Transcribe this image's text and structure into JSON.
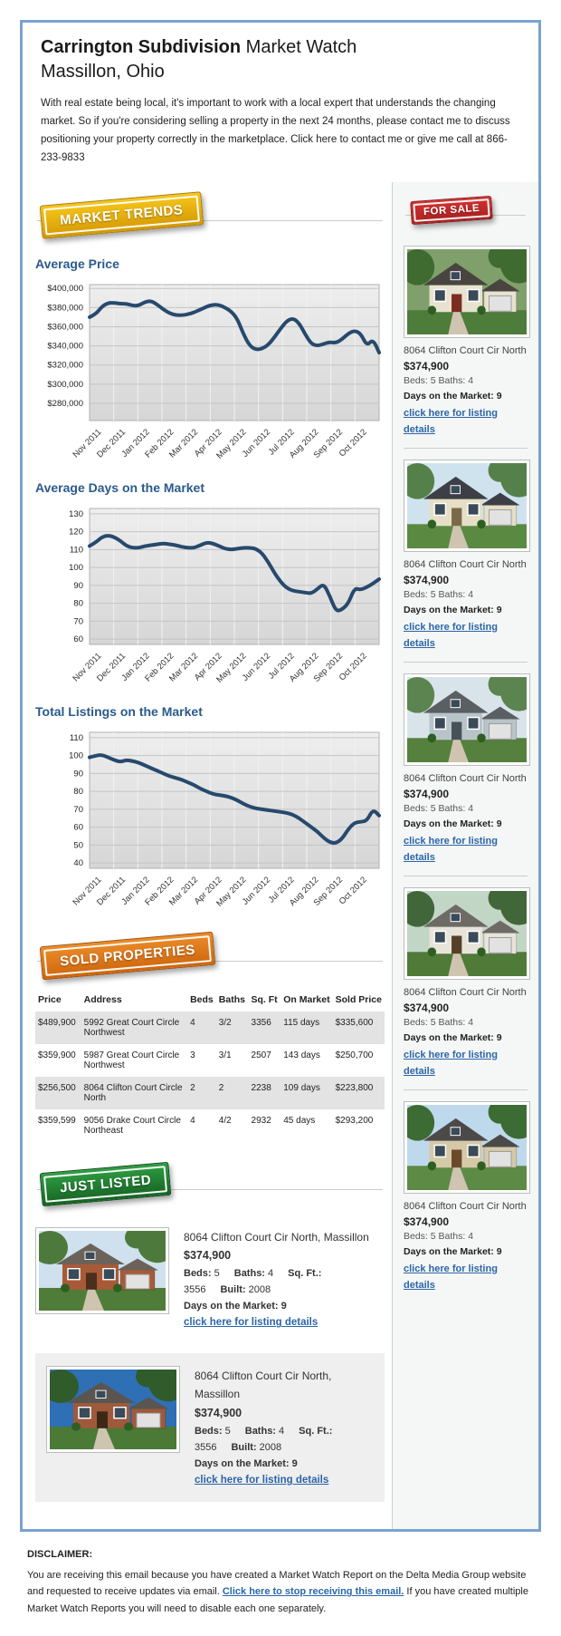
{
  "header": {
    "title_bold": "Carrington Subdivision",
    "title_rest": " Market Watch",
    "subtitle": "Massillon, Ohio",
    "intro": "With real estate being local, it's important to work with a local expert that understands the changing market. So if you're considering selling a property in the next 24 months, please contact me to discuss positioning your property correctly in the marketplace. Click here to contact me or give me call at 866-233-9833"
  },
  "badges": {
    "market_trends": "MARKET TRENDS",
    "sold_properties": "SOLD PROPERTIES",
    "just_listed": "JUST LISTED",
    "for_sale": "FOR SALE"
  },
  "chart_data": [
    {
      "type": "line",
      "title": "Average Price",
      "x_labels": [
        "Nov 2011",
        "Dec 2011",
        "Jan 2012",
        "Feb 2012",
        "Mar 2012",
        "Apr 2012",
        "May 2012",
        "Jun 2012",
        "Jul 2012",
        "Aug 2012",
        "Sep 2012",
        "Oct 2012"
      ],
      "values": [
        370000,
        373000,
        381000,
        385000,
        385000,
        384000,
        384000,
        382000,
        382000,
        386000,
        387000,
        383000,
        378000,
        374000,
        372000,
        372000,
        373000,
        375000,
        378000,
        381000,
        383000,
        383000,
        380000,
        376000,
        368000,
        352000,
        340000,
        336000,
        337000,
        341000,
        349000,
        358000,
        366000,
        369000,
        364000,
        352000,
        342000,
        340000,
        342000,
        344000,
        343000,
        347000,
        353000,
        356000,
        353000,
        340000,
        347000,
        333000
      ],
      "ylim": [
        262000,
        404000
      ],
      "yticks": [
        {
          "v": 280000,
          "label": "$280,000"
        },
        {
          "v": 300000,
          "label": "$300,000"
        },
        {
          "v": 320000,
          "label": "$320,000"
        },
        {
          "v": 340000,
          "label": "$340,000"
        },
        {
          "v": 360000,
          "label": "$360,000"
        },
        {
          "v": 380000,
          "label": "$380,000"
        },
        {
          "v": 400000,
          "label": "$400,000"
        }
      ],
      "line_color": "#27496d",
      "grid": true,
      "legend": "none"
    },
    {
      "type": "line",
      "title": "Average Days on the Market",
      "x_labels": [
        "Nov 2011",
        "Dec 2011",
        "Jan 2012",
        "Feb 2012",
        "Mar 2012",
        "Apr 2012",
        "May 2012",
        "Jun 2012",
        "Jul 2012",
        "Aug 2012",
        "Sep 2012",
        "Oct 2012"
      ],
      "values": [
        112,
        114,
        117,
        118,
        117,
        115,
        112,
        111,
        111,
        112,
        112.5,
        113,
        113.5,
        113,
        112.5,
        111.5,
        111,
        111,
        112.5,
        114,
        113.5,
        112,
        110.5,
        110,
        110.5,
        111,
        111,
        110.5,
        108,
        103,
        97,
        92,
        88.5,
        87,
        86.5,
        86,
        85.5,
        88,
        91,
        84,
        75.5,
        76.5,
        80,
        88.5,
        87.5,
        89,
        91,
        93.5
      ],
      "ylim": [
        57,
        133
      ],
      "yticks": [
        {
          "v": 60,
          "label": "60"
        },
        {
          "v": 70,
          "label": "70"
        },
        {
          "v": 80,
          "label": "80"
        },
        {
          "v": 90,
          "label": "90"
        },
        {
          "v": 100,
          "label": "100"
        },
        {
          "v": 110,
          "label": "110"
        },
        {
          "v": 120,
          "label": "120"
        },
        {
          "v": 130,
          "label": "130"
        }
      ],
      "line_color": "#27496d",
      "grid": true,
      "legend": "none"
    },
    {
      "type": "line",
      "title": "Total Listings on the Market",
      "x_labels": [
        "Nov 2011",
        "Dec 2011",
        "Jan 2012",
        "Feb 2012",
        "Mar 2012",
        "Apr 2012",
        "May 2012",
        "Jun 2012",
        "Jul 2012",
        "Aug 2012",
        "Sep 2012",
        "Oct 2012"
      ],
      "values": [
        99,
        100,
        100.5,
        99,
        97.5,
        96.5,
        97.5,
        97,
        96,
        94.5,
        93,
        91.5,
        90,
        88.5,
        87.5,
        86.5,
        85,
        83.5,
        81.5,
        80,
        78.5,
        78,
        77.5,
        76.5,
        75,
        73,
        71.5,
        70.5,
        70,
        69.5,
        69,
        68.5,
        68,
        67,
        65,
        62.5,
        60,
        57.5,
        54,
        51.5,
        51,
        53.5,
        59,
        62.5,
        63,
        63.5,
        70,
        66.5
      ],
      "ylim": [
        37,
        113
      ],
      "yticks": [
        {
          "v": 40,
          "label": "40"
        },
        {
          "v": 50,
          "label": "50"
        },
        {
          "v": 60,
          "label": "60"
        },
        {
          "v": 70,
          "label": "70"
        },
        {
          "v": 80,
          "label": "80"
        },
        {
          "v": 90,
          "label": "90"
        },
        {
          "v": 100,
          "label": "100"
        },
        {
          "v": 110,
          "label": "110"
        }
      ],
      "line_color": "#27496d",
      "grid": true,
      "legend": "none"
    }
  ],
  "sold_table": {
    "headers": [
      "Price",
      "Address",
      "Beds",
      "Baths",
      "Sq. Ft",
      "On Market",
      "Sold Price"
    ],
    "rows": [
      [
        "$489,900",
        "5992 Great Court Circle Northwest",
        "4",
        "3/2",
        "3356",
        "115 days",
        "$335,600"
      ],
      [
        "$359,900",
        "5987 Great Court Circle Northwest",
        "3",
        "3/1",
        "2507",
        "143 days",
        "$250,700"
      ],
      [
        "$256,500",
        "8064 Clifton Court Circle North",
        "2",
        "2",
        "2238",
        "109 days",
        "$223,800"
      ],
      [
        "$359,599",
        "9056 Drake Court Circle Northeast",
        "4",
        "4/2",
        "2932",
        "45 days",
        "$293,200"
      ]
    ]
  },
  "just_listed": {
    "items": [
      {
        "address": "8064 Clifton Court Cir North, Massillon",
        "price": "$374,900",
        "specs": [
          {
            "label": "Beds:",
            "value": "5"
          },
          {
            "label": "Baths:",
            "value": "4"
          },
          {
            "label": "Sq. Ft.:",
            "value": "3556"
          },
          {
            "label": "Built:",
            "value": "2008"
          }
        ],
        "days": "Days on the Market: 9",
        "link": "click here for listing details",
        "photo": {
          "sky": "#cfe0ee",
          "tree": "#4d7a3c",
          "grass": "#4f7c38",
          "wall": "#a85a38",
          "roof": "#6b625a",
          "door": "#4a2f1d"
        }
      },
      {
        "address": "8064 Clifton Court Cir North, Massillon",
        "price": "$374,900",
        "specs": [
          {
            "label": "Beds:",
            "value": "5"
          },
          {
            "label": "Baths:",
            "value": "4"
          },
          {
            "label": "Sq. Ft.:",
            "value": "3556"
          },
          {
            "label": "Built:",
            "value": "2008"
          }
        ],
        "days": "Days on the Market: 9",
        "link": "click here for listing details",
        "photo": {
          "sky": "#2f6fb5",
          "tree": "#2f5c2a",
          "grass": "#4a7a36",
          "wall": "#9e5a3c",
          "roof": "#5a5550",
          "door": "#3c2817"
        }
      }
    ]
  },
  "sidebar": {
    "listings": [
      {
        "address": "8064 Clifton Court Cir North",
        "price": "$374,900",
        "beds_baths": "Beds: 5 Baths: 4",
        "days": "Days on the Market: 9",
        "link": "click here for listing details",
        "photo": {
          "sky": "#7fa06b",
          "tree": "#3f6a30",
          "grass": "#4e7c3a",
          "wall": "#e8e2d0",
          "roof": "#4a4440",
          "door": "#7a2d20"
        }
      },
      {
        "address": "8064 Clifton Court Cir North",
        "price": "$374,900",
        "beds_baths": "Beds: 5 Baths: 4",
        "days": "Days on the Market: 9",
        "link": "click here for listing details",
        "photo": {
          "sky": "#cfe3ee",
          "tree": "#55804a",
          "grass": "#5a8a42",
          "wall": "#e6dfc6",
          "roof": "#3d3f46",
          "door": "#7a6a4a"
        }
      },
      {
        "address": "8064 Clifton Court Cir North",
        "price": "$374,900",
        "beds_baths": "Beds: 5 Baths: 4",
        "days": "Days on the Market: 9",
        "link": "click here for listing details",
        "photo": {
          "sky": "#d8e4ea",
          "tree": "#5c8450",
          "grass": "#55803d",
          "wall": "#b9c4c9",
          "roof": "#5a5f63",
          "door": "#47515a"
        }
      },
      {
        "address": "8064 Clifton Court Cir North",
        "price": "$374,900",
        "beds_baths": "Beds: 5 Baths: 4",
        "days": "Days on the Market: 9",
        "link": "click here for listing details",
        "photo": {
          "sky": "#c2d6c6",
          "tree": "#41663a",
          "grass": "#4f7a38",
          "wall": "#e8e4da",
          "roof": "#6e6a66",
          "door": "#55402a"
        }
      },
      {
        "address": "8064 Clifton Court Cir North",
        "price": "$374,900",
        "beds_baths": "Beds: 5 Baths: 4",
        "days": "Days on the Market: 9",
        "link": "click here for listing details",
        "photo": {
          "sky": "#bfd9ec",
          "tree": "#3c6b33",
          "grass": "#5d8a45",
          "wall": "#d6c9a8",
          "roof": "#4c4a48",
          "door": "#6a4a2a"
        }
      }
    ]
  },
  "disclaimer": {
    "heading": "DISCLAIMER:",
    "before": "You are receiving this email because you have created a Market Watch Report on the Delta Media Group website and requested to receive updates via email. ",
    "link": "Click here to stop receiving this email.",
    "after": " If you have created multiple Market Watch Reports you will need to disable each one separately."
  },
  "colors": {
    "frame_blue": "#78a3d2",
    "heading_blue": "#2a5a8c",
    "link_blue": "#2b66a8",
    "chart_line": "#27496d",
    "badge_gold": "#e8ae10",
    "badge_orange": "#dd7a1c",
    "badge_green": "#1f7a2e",
    "badge_red": "#c02828"
  }
}
